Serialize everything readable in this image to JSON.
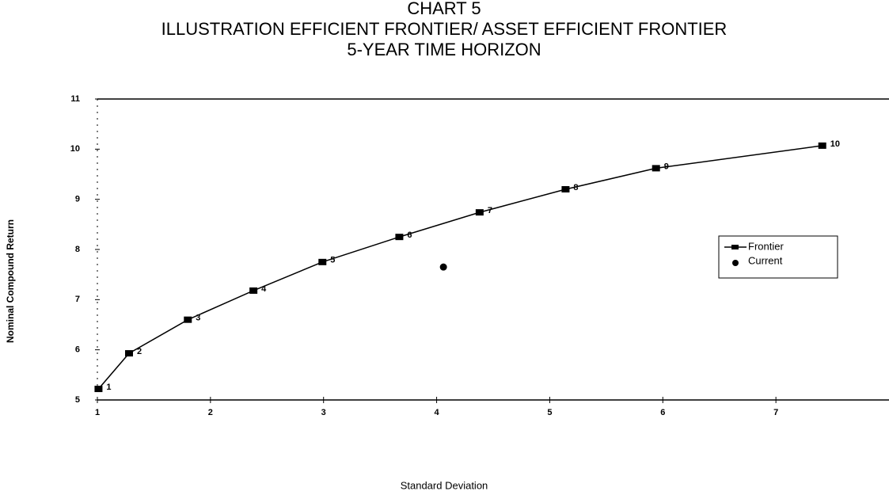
{
  "chart_data": {
    "type": "line",
    "title": [
      "CHART 5",
      "ILLUSTRATION EFFICIENT FRONTIER/ ASSET EFFICIENT FRONTIER",
      "5-YEAR TIME HORIZON"
    ],
    "x_label": "Standard Deviation",
    "y_label": "Nominal Compound Return",
    "xlim": [
      1,
      8
    ],
    "xticks": [
      1,
      2,
      3,
      4,
      5,
      6,
      7
    ],
    "ylim": [
      5,
      11
    ],
    "yticks": [
      5,
      6,
      7,
      8,
      9,
      10,
      11
    ],
    "legend": "right",
    "series": [
      {
        "name": "Frontier",
        "color": "#000000",
        "x": [
          1.01,
          1.28,
          1.8,
          2.38,
          2.99,
          3.67,
          4.38,
          5.14,
          5.94,
          7.41
        ],
        "values": [
          5.22,
          5.93,
          6.6,
          7.18,
          7.75,
          8.25,
          8.74,
          9.2,
          9.62,
          10.07
        ],
        "point_labels": [
          "1",
          "2",
          "3",
          "4",
          "5",
          "6",
          "7",
          "8",
          "9",
          "10"
        ]
      },
      {
        "name": "Current",
        "color": "#000000",
        "x": [
          4.06
        ],
        "values": [
          7.65
        ]
      }
    ]
  }
}
